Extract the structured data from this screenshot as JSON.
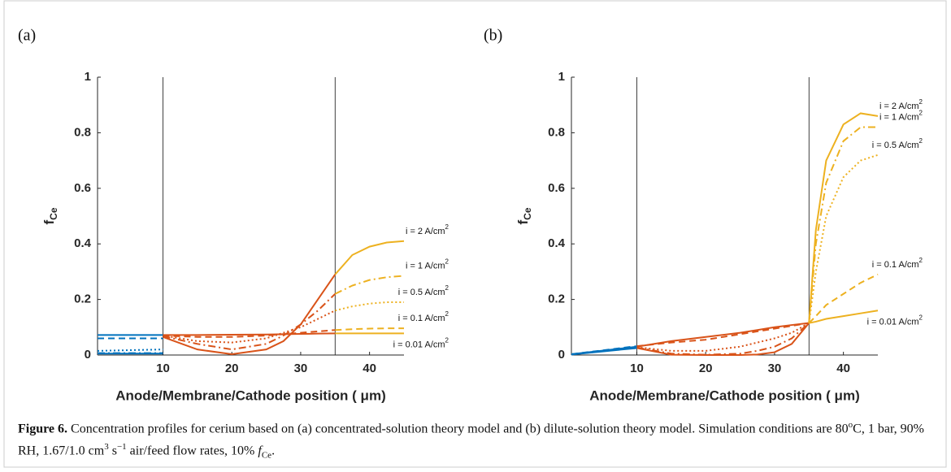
{
  "chart_data": [
    {
      "type": "line",
      "panel_label": "(a)",
      "xlabel": "Anode/Membrane/Cathode position ( μm)",
      "ylabel": "f",
      "ylabel_sub": "Ce",
      "xlim": [
        0.5,
        45
      ],
      "ylim": [
        0,
        1
      ],
      "xticks": [
        10,
        20,
        30,
        40
      ],
      "yticks": [
        0,
        0.2,
        0.4,
        0.6,
        0.8,
        1
      ],
      "boundaries": [
        10,
        35
      ],
      "series": [
        {
          "color": "#0072bd",
          "dash": "solid",
          "x": [
            0.5,
            10
          ],
          "values": [
            0.005,
            0.005
          ]
        },
        {
          "color": "#0072bd",
          "dash": "dashdot",
          "x": [
            0.5,
            10
          ],
          "values": [
            0.007,
            0.007
          ]
        },
        {
          "color": "#0072bd",
          "dash": "dotted",
          "x": [
            0.5,
            10
          ],
          "values": [
            0.015,
            0.02
          ]
        },
        {
          "color": "#0072bd",
          "dash": "dashed",
          "x": [
            0.5,
            10
          ],
          "values": [
            0.06,
            0.06
          ]
        },
        {
          "color": "#0072bd",
          "dash": "solid",
          "x": [
            0.5,
            10
          ],
          "values": [
            0.072,
            0.072
          ]
        },
        {
          "color": "#d95319",
          "dash": "solid",
          "x": [
            10,
            15,
            20,
            25,
            27.5,
            30,
            32.5,
            35
          ],
          "values": [
            0.065,
            0.02,
            0.003,
            0.02,
            0.05,
            0.11,
            0.2,
            0.29
          ]
        },
        {
          "color": "#d95319",
          "dash": "dashdot",
          "x": [
            10,
            15,
            20,
            25,
            27.5,
            30,
            32.5,
            35
          ],
          "values": [
            0.068,
            0.04,
            0.02,
            0.04,
            0.07,
            0.11,
            0.16,
            0.22
          ]
        },
        {
          "color": "#d95319",
          "dash": "dotted",
          "x": [
            10,
            15,
            20,
            25,
            27.5,
            30,
            32.5,
            35
          ],
          "values": [
            0.07,
            0.05,
            0.045,
            0.06,
            0.08,
            0.1,
            0.13,
            0.16
          ]
        },
        {
          "color": "#d95319",
          "dash": "dashed",
          "x": [
            10,
            15,
            20,
            25,
            27.5,
            30,
            32.5,
            35
          ],
          "values": [
            0.07,
            0.065,
            0.065,
            0.07,
            0.075,
            0.08,
            0.085,
            0.09
          ]
        },
        {
          "color": "#d95319",
          "dash": "solid",
          "x": [
            10,
            15,
            20,
            25,
            27.5,
            30,
            32.5,
            35
          ],
          "values": [
            0.072,
            0.072,
            0.073,
            0.074,
            0.075,
            0.076,
            0.077,
            0.078
          ]
        },
        {
          "color": "#edb120",
          "dash": "solid",
          "x": [
            35,
            37.5,
            40,
            42.5,
            45
          ],
          "values": [
            0.29,
            0.36,
            0.39,
            0.405,
            0.41
          ],
          "label": "i = 2 A/cm",
          "label_sup": "2"
        },
        {
          "color": "#edb120",
          "dash": "dashdot",
          "x": [
            35,
            37.5,
            40,
            42.5,
            45
          ],
          "values": [
            0.22,
            0.25,
            0.27,
            0.28,
            0.285
          ],
          "label": "i = 1 A/cm",
          "label_sup": "2"
        },
        {
          "color": "#edb120",
          "dash": "dotted",
          "x": [
            35,
            37.5,
            40,
            42.5,
            45
          ],
          "values": [
            0.16,
            0.175,
            0.185,
            0.19,
            0.19
          ],
          "label": "i = 0.5 A/cm",
          "label_sup": "2"
        },
        {
          "color": "#edb120",
          "dash": "dashed",
          "x": [
            35,
            37.5,
            40,
            42.5,
            45
          ],
          "values": [
            0.09,
            0.093,
            0.095,
            0.096,
            0.096
          ],
          "label": "i = 0.1 A/cm",
          "label_sup": "2"
        },
        {
          "color": "#edb120",
          "dash": "solid",
          "x": [
            35,
            37.5,
            40,
            42.5,
            45
          ],
          "values": [
            0.078,
            0.078,
            0.078,
            0.078,
            0.078
          ],
          "label": "i = 0.01 A/cm",
          "label_sup": "2"
        }
      ]
    },
    {
      "type": "line",
      "panel_label": "(b)",
      "xlabel": "Anode/Membrane/Cathode position ( μm)",
      "ylabel": "f",
      "ylabel_sub": "Ce",
      "xlim": [
        0.5,
        45
      ],
      "ylim": [
        0,
        1
      ],
      "xticks": [
        10,
        20,
        30,
        40
      ],
      "yticks": [
        0,
        0.2,
        0.4,
        0.6,
        0.8,
        1
      ],
      "boundaries": [
        10,
        35
      ],
      "series": [
        {
          "color": "#0072bd",
          "dash": "solid",
          "x": [
            0.5,
            10
          ],
          "values": [
            0.002,
            0.025
          ]
        },
        {
          "color": "#0072bd",
          "dash": "dashdot",
          "x": [
            0.5,
            10
          ],
          "values": [
            0.002,
            0.027
          ]
        },
        {
          "color": "#0072bd",
          "dash": "dotted",
          "x": [
            0.5,
            10
          ],
          "values": [
            0.002,
            0.028
          ]
        },
        {
          "color": "#0072bd",
          "dash": "dashed",
          "x": [
            0.5,
            10
          ],
          "values": [
            0.003,
            0.032
          ]
        },
        {
          "color": "#0072bd",
          "dash": "solid",
          "x": [
            0.5,
            10
          ],
          "values": [
            0.003,
            0.03
          ]
        },
        {
          "color": "#d95319",
          "dash": "solid",
          "x": [
            10,
            15,
            20,
            25,
            27.5,
            30,
            32.5,
            35
          ],
          "values": [
            0.025,
            0.001,
            0,
            0,
            0.002,
            0.01,
            0.04,
            0.115
          ]
        },
        {
          "color": "#d95319",
          "dash": "dashdot",
          "x": [
            10,
            15,
            20,
            25,
            27.5,
            30,
            32.5,
            35
          ],
          "values": [
            0.027,
            0.005,
            0.001,
            0.005,
            0.015,
            0.03,
            0.06,
            0.115
          ]
        },
        {
          "color": "#d95319",
          "dash": "dotted",
          "x": [
            10,
            15,
            20,
            25,
            27.5,
            30,
            32.5,
            35
          ],
          "values": [
            0.028,
            0.015,
            0.015,
            0.03,
            0.045,
            0.06,
            0.08,
            0.115
          ]
        },
        {
          "color": "#d95319",
          "dash": "dashed",
          "x": [
            10,
            15,
            20,
            25,
            27.5,
            30,
            32.5,
            35
          ],
          "values": [
            0.032,
            0.045,
            0.055,
            0.075,
            0.085,
            0.095,
            0.105,
            0.115
          ]
        },
        {
          "color": "#d95319",
          "dash": "solid",
          "x": [
            10,
            15,
            20,
            25,
            27.5,
            30,
            32.5,
            35
          ],
          "values": [
            0.03,
            0.05,
            0.065,
            0.08,
            0.09,
            0.1,
            0.108,
            0.115
          ]
        },
        {
          "color": "#edb120",
          "dash": "solid",
          "x": [
            35,
            36,
            37.5,
            40,
            42.5,
            45
          ],
          "values": [
            0.115,
            0.45,
            0.7,
            0.83,
            0.87,
            0.86
          ],
          "label": "i = 2 A/cm",
          "label_sup": "2"
        },
        {
          "color": "#edb120",
          "dash": "dashdot",
          "x": [
            35,
            36,
            37.5,
            40,
            42.5,
            45
          ],
          "values": [
            0.115,
            0.4,
            0.62,
            0.77,
            0.82,
            0.82
          ],
          "label": "i = 1 A/cm",
          "label_sup": "2"
        },
        {
          "color": "#edb120",
          "dash": "dotted",
          "x": [
            35,
            36,
            37.5,
            40,
            42.5,
            45
          ],
          "values": [
            0.115,
            0.3,
            0.5,
            0.64,
            0.7,
            0.72
          ],
          "label": "i = 0.5 A/cm",
          "label_sup": "2"
        },
        {
          "color": "#edb120",
          "dash": "dashed",
          "x": [
            35,
            36,
            37.5,
            40,
            42.5,
            45
          ],
          "values": [
            0.115,
            0.14,
            0.18,
            0.22,
            0.26,
            0.29
          ],
          "label": "i = 0.1 A/cm",
          "label_sup": "2"
        },
        {
          "color": "#edb120",
          "dash": "solid",
          "x": [
            35,
            36,
            37.5,
            40,
            42.5,
            45
          ],
          "values": [
            0.115,
            0.12,
            0.13,
            0.14,
            0.15,
            0.16
          ],
          "label": "i = 0.01 A/cm",
          "label_sup": "2"
        }
      ]
    }
  ],
  "caption": [
    {
      "text": "Figure 6.",
      "style": "bold"
    },
    {
      "text": " Concentration profiles for cerium based on (a) concentrated-solution theory model and (b) dilute-solution theory model. Simulation conditions are 80"
    },
    {
      "text": "o",
      "style": "sup"
    },
    {
      "text": "C, 1 bar, 90% RH, 1.67/1.0 cm"
    },
    {
      "text": "3",
      "style": "sup"
    },
    {
      "text": " s"
    },
    {
      "text": "−1",
      "style": "sup"
    },
    {
      "text": " air/feed flow rates, 10% "
    },
    {
      "text": "f",
      "style": "italic"
    },
    {
      "text": "Ce",
      "style": "sub"
    },
    {
      "text": "."
    }
  ]
}
